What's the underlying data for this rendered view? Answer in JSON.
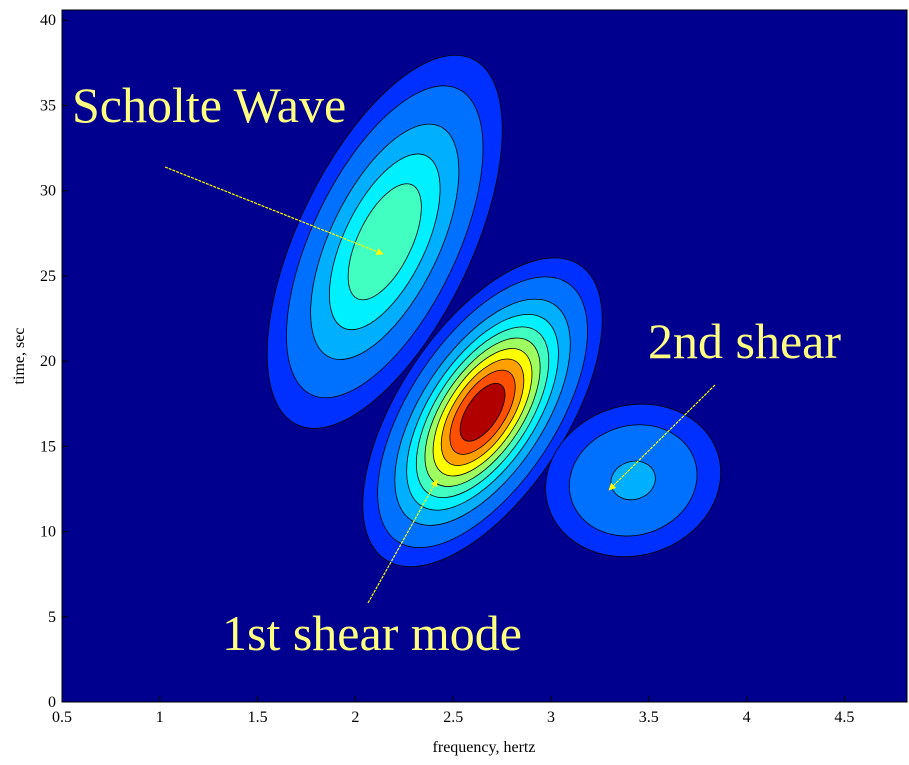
{
  "chart_data": {
    "type": "contour",
    "x_label": "frequency, hertz",
    "y_label": "time, sec",
    "xlim": [
      0.5,
      4.82
    ],
    "ylim": [
      0,
      40.6
    ],
    "xticks": [
      0.5,
      1,
      1.5,
      2,
      2.5,
      3,
      3.5,
      4,
      4.5
    ],
    "yticks": [
      0,
      5,
      10,
      15,
      20,
      25,
      30,
      35,
      40
    ],
    "background": "#00008f",
    "levels": [
      0.05,
      0.1,
      0.2,
      0.3,
      0.4,
      0.5,
      0.6,
      0.7,
      0.8,
      0.9
    ],
    "colors": [
      "#0030ff",
      "#0070ff",
      "#00b0ff",
      "#00f0ff",
      "#40ffc0",
      "#a0ff60",
      "#ffff00",
      "#ffa000",
      "#ff5000",
      "#b00000"
    ],
    "peaks": [
      {
        "x": 2.15,
        "y": 27,
        "sx": 0.28,
        "sy": 5.1,
        "rho": 0.6,
        "amplitude": 0.5
      },
      {
        "x": 2.65,
        "y": 17,
        "sx": 0.25,
        "sy": 3.7,
        "rho": 0.6,
        "amplitude": 1.0
      },
      {
        "x": 3.42,
        "y": 13,
        "sx": 0.26,
        "sy": 2.6,
        "rho": 0.1,
        "amplitude": 0.22
      }
    ],
    "annotations": [
      "Scholte Wave",
      "2nd shear",
      "1st shear mode"
    ]
  }
}
